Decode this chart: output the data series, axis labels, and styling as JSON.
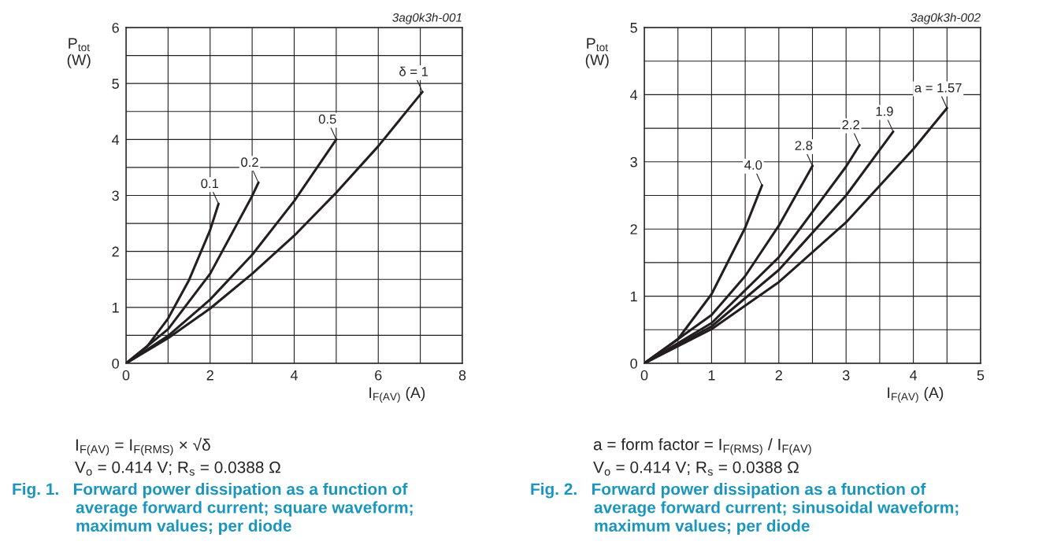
{
  "chart_data": [
    {
      "type": "line",
      "title": "Fig. 1.   Forward power dissipation as a function of\n              average forward current; square waveform;\n              maximum values; per diode",
      "xlabel": "I$_{F(AV)}$ (A)",
      "ylabel": "P$_{tot}$\n(W)",
      "xlim": [
        0,
        8
      ],
      "ylim": [
        0,
        6
      ],
      "xticks": [
        0,
        {
          "value": 1,
          "label": null
        },
        2,
        {
          "value": 3,
          "label": null
        },
        4,
        {
          "value": 5,
          "label": null
        },
        6,
        {
          "value": 7,
          "label": null
        },
        8
      ],
      "yticks": [
        0,
        {
          "value": 0.5,
          "label": null
        },
        1,
        {
          "value": 1.5,
          "label": null
        },
        2,
        {
          "value": 2.5,
          "label": null
        },
        3,
        {
          "value": 3.5,
          "label": null
        },
        4,
        {
          "value": 4.5,
          "label": null
        },
        5,
        {
          "value": 5.5,
          "label": null
        },
        6
      ],
      "grid": true,
      "series": [
        {
          "color": "#231f20",
          "x": [
            0,
            1,
            2,
            3,
            4,
            5,
            6,
            7.05
          ],
          "values": [
            0,
            0.45,
            0.98,
            1.6,
            2.28,
            3.05,
            3.88,
            4.85
          ]
        },
        {
          "color": "#231f20",
          "x": [
            0,
            1,
            2,
            3,
            4,
            5
          ],
          "values": [
            0,
            0.49,
            1.14,
            1.94,
            2.9,
            4.0
          ]
        },
        {
          "color": "#231f20",
          "x": [
            0,
            1,
            2,
            3,
            3.15
          ],
          "values": [
            0,
            0.61,
            1.6,
            2.99,
            3.23
          ]
        },
        {
          "color": "#231f20",
          "x": [
            0,
            0.5,
            1,
            1.5,
            2,
            2.2
          ],
          "values": [
            0,
            0.3,
            0.8,
            1.49,
            2.38,
            2.85
          ]
        }
      ],
      "annotations": [
        "3ag0k3h-001",
        {
          "text": "δ = 1",
          "x": 7.05,
          "y": 4.85
        },
        {
          "text": "0.5",
          "x": 5,
          "y": 4.0
        },
        {
          "text": "0.2",
          "x": 3.15,
          "y": 3.23
        },
        {
          "text": "0.1",
          "x": 2.2,
          "y": 2.85
        },
        "I$_{F(AV)}$ = I$_{F(RMS)}$ × √δ",
        "V$_{o}$ = 0.414 V; R$_{s}$ = 0.0388 Ω"
      ]
    },
    {
      "type": "line",
      "title": "Fig. 2.   Forward power dissipation as a function of\n              average forward current; sinusoidal waveform;\n              maximum values; per diode",
      "xlabel": "I$_{F(AV)}$ (A)",
      "ylabel": "P$_{tot}$\n(W)",
      "xlim": [
        0,
        5
      ],
      "ylim": [
        0,
        5
      ],
      "xticks": [
        0,
        {
          "value": 0.5,
          "label": null
        },
        1,
        {
          "value": 1.5,
          "label": null
        },
        2,
        {
          "value": 2.5,
          "label": null
        },
        3,
        {
          "value": 3.5,
          "label": null
        },
        4,
        {
          "value": 4.5,
          "label": null
        },
        5
      ],
      "yticks": [
        0,
        {
          "value": 0.5,
          "label": null
        },
        1,
        {
          "value": 1.5,
          "label": null
        },
        2,
        {
          "value": 2.5,
          "label": null
        },
        3,
        {
          "value": 3.5,
          "label": null
        },
        4,
        {
          "value": 4.5,
          "label": null
        },
        5
      ],
      "grid": true,
      "series": [
        {
          "color": "#231f20",
          "x": [
            0,
            1,
            2,
            3,
            4,
            4.5
          ],
          "values": [
            0,
            0.51,
            1.21,
            2.1,
            3.19,
            3.8
          ]
        },
        {
          "color": "#231f20",
          "x": [
            0,
            1,
            2,
            3,
            3.7
          ],
          "values": [
            0,
            0.55,
            1.39,
            2.5,
            3.45
          ]
        },
        {
          "color": "#231f20",
          "x": [
            0,
            1,
            2,
            3,
            3.2
          ],
          "values": [
            0,
            0.6,
            1.58,
            2.93,
            3.25
          ]
        },
        {
          "color": "#231f20",
          "x": [
            0,
            1,
            1.5,
            2,
            2.5
          ],
          "values": [
            0,
            0.72,
            1.3,
            2.05,
            2.94
          ]
        },
        {
          "color": "#231f20",
          "x": [
            0,
            0.5,
            1,
            1.5,
            1.75
          ],
          "values": [
            0,
            0.36,
            1.03,
            2.02,
            2.65
          ]
        }
      ],
      "annotations": [
        "3ag0k3h-002",
        {
          "text": "a = 1.57",
          "x": 4.5,
          "y": 3.8
        },
        {
          "text": "1.9",
          "x": 3.7,
          "y": 3.45
        },
        {
          "text": "2.2",
          "x": 3.2,
          "y": 3.25
        },
        {
          "text": "2.8",
          "x": 2.5,
          "y": 2.94
        },
        {
          "text": "4.0",
          "x": 1.75,
          "y": 2.65
        },
        "a = form factor = I$_{F(RMS)}$ / I$_{F(AV)}$",
        "V$_{o}$ = 0.414 V; R$_{s}$ = 0.0388 Ω"
      ]
    }
  ]
}
